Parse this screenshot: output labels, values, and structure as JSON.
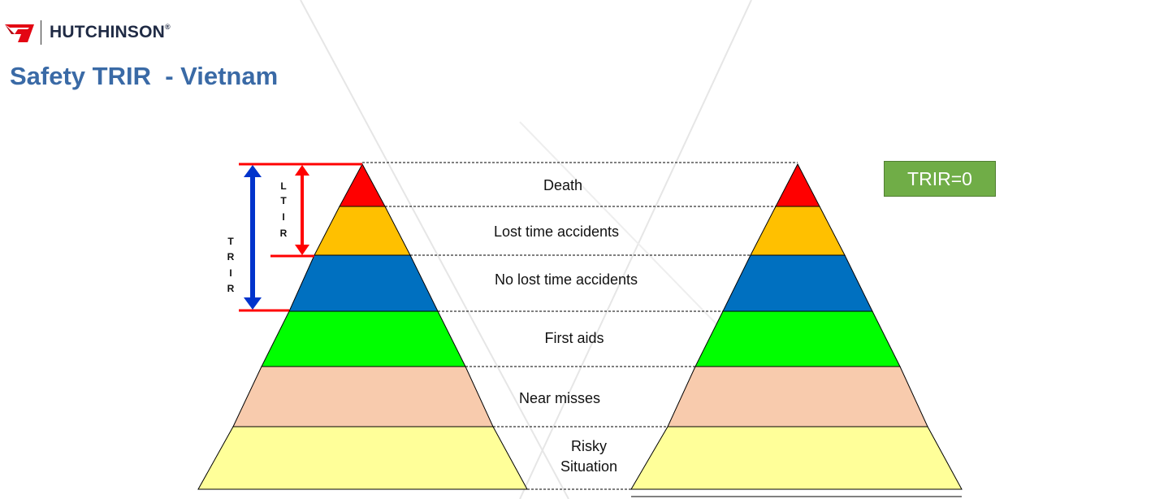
{
  "header": {
    "brand": "HUTCHINSON",
    "registered": "®"
  },
  "title": "Safety TRIR  - Vietnam",
  "badge": "TRIR=0",
  "axis": {
    "ltir_letters": [
      "L",
      "T",
      "I",
      "R"
    ],
    "trir_letters": [
      "T",
      "R",
      "I",
      "R"
    ]
  },
  "levels": [
    {
      "label": "Death",
      "color": "#ff0000"
    },
    {
      "label": "Lost time accidents",
      "color": "#ffc000"
    },
    {
      "label": "No lost time accidents",
      "color": "#0070c0"
    },
    {
      "label": "First aids",
      "color": "#00ff00"
    },
    {
      "label": "Near misses",
      "color": "#f8cbad"
    },
    {
      "label": "Risky\nSituation",
      "color": "#ffff99"
    }
  ],
  "colors": {
    "title": "#3a6aa6",
    "ltir_arrow": "#ff0000",
    "trir_arrow": "#0033cc",
    "badge": "#70ad47",
    "logo": "#e30613"
  }
}
